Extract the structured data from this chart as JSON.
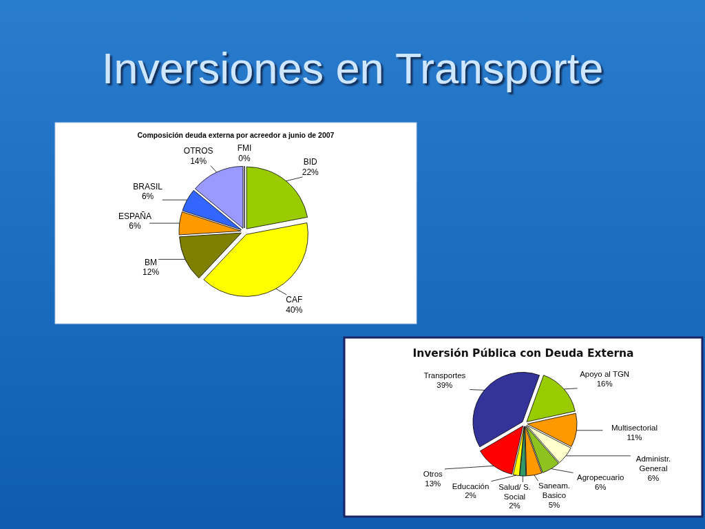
{
  "chart_data": [
    {
      "type": "other",
      "title": "Inversiones en Transporte"
    },
    {
      "type": "pie",
      "title": "Composición deuda externa por acreedor a junio de 2007",
      "categories": [
        "FMI",
        "BID",
        "CAF",
        "BM",
        "ESPAÑA",
        "BRASIL",
        "OTROS"
      ],
      "values": [
        0,
        22,
        40,
        12,
        6,
        6,
        14
      ],
      "colors": [
        "#ffffff",
        "#99cc00",
        "#ffff00",
        "#808000",
        "#ff9900",
        "#3366ff",
        "#9999ff"
      ],
      "value_labels": [
        "0%",
        "22%",
        "40%",
        "12%",
        "6%",
        "6%",
        "14%"
      ]
    },
    {
      "type": "pie",
      "title": "Inversión Pública con Deuda Externa",
      "categories": [
        "Transportes",
        "Apoyo al TGN",
        "Multisectorial",
        "Administr. General",
        "Agropecuario",
        "Saneam. Basico",
        "Salud/ S. Social",
        "Educación",
        "Otros"
      ],
      "values": [
        39,
        16,
        11,
        6,
        6,
        5,
        2,
        2,
        13
      ],
      "colors": [
        "#333399",
        "#99cc00",
        "#ff9900",
        "#ffffcc",
        "#8dc21f",
        "#ff9900",
        "#339966",
        "#ffff00",
        "#ff0000"
      ],
      "value_labels": [
        "39%",
        "16%",
        "11%",
        "6%",
        "6%",
        "5%",
        "2%",
        "2%",
        "13%"
      ]
    }
  ]
}
